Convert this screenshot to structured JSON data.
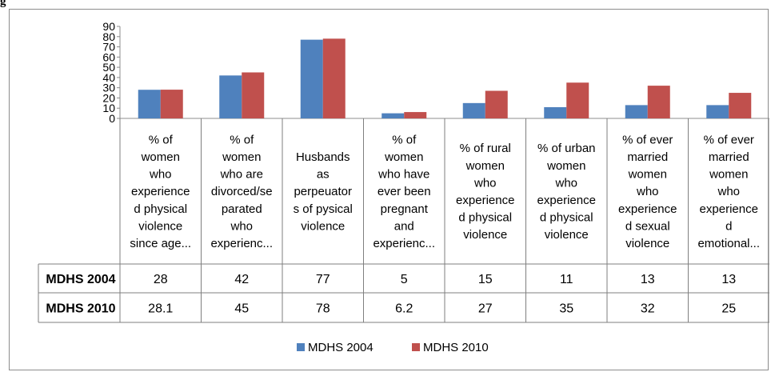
{
  "corner_text": "g",
  "chart_data": {
    "type": "bar",
    "title": "",
    "xlabel": "",
    "ylabel": "",
    "ylim": [
      0,
      90
    ],
    "yticks": [
      "0",
      "10",
      "20",
      "30",
      "40",
      "50",
      "60",
      "70",
      "80",
      "90"
    ],
    "grid": false,
    "legend_position": "bottom",
    "categories": [
      [
        "% of",
        "women",
        "who",
        "experience",
        "d physical",
        "violence",
        "since age..."
      ],
      [
        "% of",
        "women",
        "who are",
        "divorced/se",
        "parated",
        "who",
        "experienc..."
      ],
      [
        "Husbands",
        "as",
        "perpeuator",
        "s of pysical",
        "violence"
      ],
      [
        "% of",
        "women",
        "who have",
        "ever been",
        "pregnant",
        "and",
        "experienc..."
      ],
      [
        "% of rural",
        "women",
        "who",
        "experience",
        "d physical",
        "violence"
      ],
      [
        "% of urban",
        "women",
        "who",
        "experience",
        "d physical",
        "violence"
      ],
      [
        "% of ever",
        "married",
        "women",
        "who",
        "experience",
        "d sexual",
        "violence"
      ],
      [
        "% of ever",
        "married",
        "women",
        "who",
        "experience",
        "d",
        "emotional..."
      ]
    ],
    "series": [
      {
        "name": "MDHS 2004",
        "color": "#4f81bd",
        "values": [
          28,
          42,
          77,
          5,
          15,
          11,
          13,
          13
        ],
        "labels": [
          "28",
          "42",
          "77",
          "5",
          "15",
          "11",
          "13",
          "13"
        ]
      },
      {
        "name": "MDHS 2010",
        "color": "#c0504d",
        "values": [
          28.1,
          45,
          78,
          6.2,
          27,
          35,
          32,
          25
        ],
        "labels": [
          "28.1",
          "45",
          "78",
          "6.2",
          "27",
          "35",
          "32",
          "25"
        ]
      }
    ]
  }
}
